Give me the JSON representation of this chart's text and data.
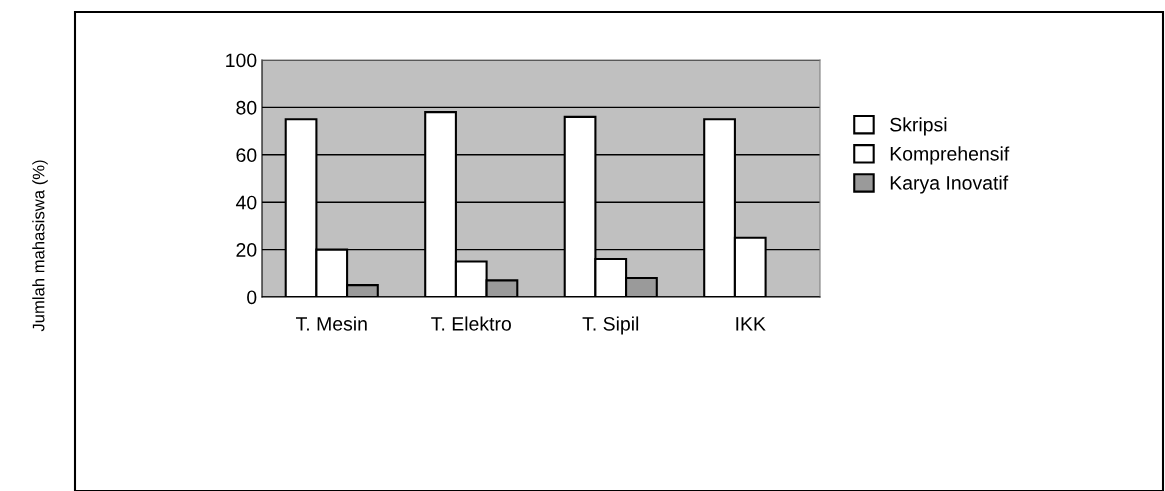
{
  "chart_data": {
    "type": "bar",
    "annotations": [
      "Jumlah mahasiswa (%)"
    ],
    "categories": [
      "T. Mesin",
      "T. Elektro",
      "T. Sipil",
      "IKK"
    ],
    "series": [
      {
        "name": "Skripsi",
        "color": "#ffffff",
        "values": [
          75,
          78,
          76,
          75
        ]
      },
      {
        "name": "Komprehensif",
        "color": "#ffffff",
        "values": [
          20,
          15,
          16,
          25
        ]
      },
      {
        "name": "Karya Inovatif",
        "color": "#9a9a9a",
        "values": [
          5,
          7,
          8,
          null
        ]
      }
    ],
    "ylim": [
      0,
      100
    ],
    "yticks": [
      0,
      20,
      40,
      60,
      80,
      100
    ],
    "grid": "y",
    "legend": "right"
  }
}
